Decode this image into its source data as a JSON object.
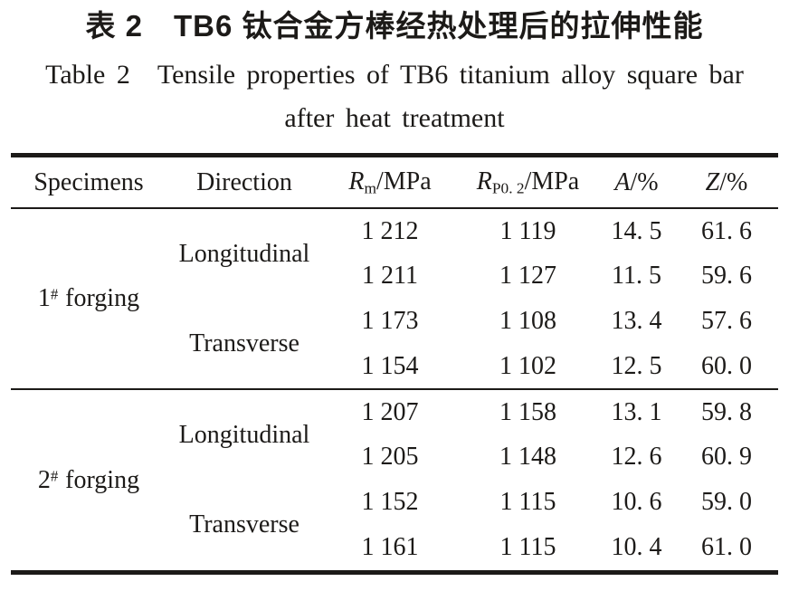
{
  "title": {
    "zh": "表 2　TB6 钛合金方棒经热处理后的拉伸性能",
    "en_line1": "Table 2　Tensile properties of TB6 titanium alloy square bar",
    "en_line2": "after heat treatment"
  },
  "table": {
    "columns": {
      "specimens": "Specimens",
      "direction": "Direction",
      "rm": {
        "symbol": "R",
        "sub": "m",
        "unit": "/MPa"
      },
      "rp": {
        "symbol": "R",
        "sub": "P0. 2",
        "unit": "/MPa"
      },
      "a": {
        "symbol": "A",
        "unit": "/%"
      },
      "z": {
        "symbol": "Z",
        "unit": "/%"
      }
    },
    "groups": [
      {
        "specimen": {
          "num": "1",
          "sup": "#",
          "name": "forging"
        },
        "directions": [
          "Longitudinal",
          "Transverse"
        ]
      },
      {
        "specimen": {
          "num": "2",
          "sup": "#",
          "name": "forging"
        },
        "directions": [
          "Longitudinal",
          "Transverse"
        ]
      }
    ],
    "rows": [
      [
        "1 212",
        "1 119",
        "14. 5",
        "61. 6"
      ],
      [
        "1 211",
        "1 127",
        "11. 5",
        "59. 6"
      ],
      [
        "1 173",
        "1 108",
        "13. 4",
        "57. 6"
      ],
      [
        "1 154",
        "1 102",
        "12. 5",
        "60. 0"
      ],
      [
        "1 207",
        "1 158",
        "13. 1",
        "59. 8"
      ],
      [
        "1 205",
        "1 148",
        "12. 6",
        "60. 9"
      ],
      [
        "1 152",
        "1 115",
        "10. 6",
        "59. 0"
      ],
      [
        "1 161",
        "1 115",
        "10. 4",
        "61. 0"
      ]
    ],
    "line_color": "#1c1a18"
  }
}
